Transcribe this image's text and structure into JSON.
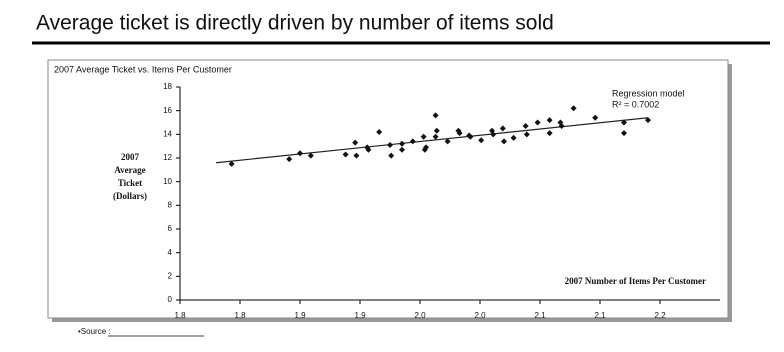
{
  "title": "Average ticket is directly driven by number of items sold",
  "source": "•Source :",
  "chart_data": {
    "type": "scatter",
    "title": "2007 Average Ticket vs. Items Per Customer",
    "ylabel": [
      "2007",
      "Average",
      "Ticket",
      "(Dollars)"
    ],
    "xlabel": "2007 Number of Items Per Customer",
    "annotations": [
      "Regression model",
      "R² = 0.7002"
    ],
    "color": "#111111",
    "xlim": [
      1.75,
      2.2
    ],
    "ylim": [
      0,
      18
    ],
    "xticks": [
      {
        "value": 1.75,
        "label": "1,8"
      },
      {
        "value": 1.8,
        "label": "1,8"
      },
      {
        "value": 1.85,
        "label": "1,9"
      },
      {
        "value": 1.9,
        "label": "1,9"
      },
      {
        "value": 1.95,
        "label": "2,0"
      },
      {
        "value": 2.0,
        "label": "2,0"
      },
      {
        "value": 2.05,
        "label": "2,1"
      },
      {
        "value": 2.1,
        "label": "2,1"
      },
      {
        "value": 2.15,
        "label": "2,2"
      }
    ],
    "yticks": [
      0,
      2,
      4,
      6,
      8,
      10,
      12,
      14,
      16,
      18
    ],
    "grid": false,
    "x": [
      1.793,
      1.841,
      1.85,
      1.859,
      1.888,
      1.896,
      1.897,
      1.906,
      1.907,
      1.916,
      1.925,
      1.926,
      1.935,
      1.935,
      1.944,
      1.953,
      1.954,
      1.955,
      1.963,
      1.963,
      1.964,
      1.973,
      1.982,
      1.983,
      1.991,
      1.992,
      2.001,
      2.01,
      2.011,
      2.019,
      2.02,
      2.028,
      2.038,
      2.039,
      2.048,
      2.058,
      2.058,
      2.067,
      2.068,
      2.078,
      2.096,
      2.12,
      2.12,
      2.14
    ],
    "y": [
      11.5,
      11.9,
      12.4,
      12.2,
      12.3,
      13.3,
      12.2,
      12.9,
      12.7,
      14.2,
      13.1,
      12.2,
      12.7,
      13.2,
      13.4,
      13.8,
      12.7,
      12.9,
      13.8,
      15.6,
      14.3,
      13.4,
      14.3,
      14.1,
      13.9,
      13.8,
      13.5,
      14.3,
      14.0,
      14.5,
      13.4,
      13.7,
      14.7,
      14.0,
      15.0,
      15.2,
      14.1,
      15.0,
      14.7,
      16.2,
      15.4,
      14.1,
      15.0,
      15.2
    ],
    "trendline": {
      "x": [
        1.78,
        2.14
      ],
      "y": [
        11.6,
        15.4
      ]
    }
  }
}
